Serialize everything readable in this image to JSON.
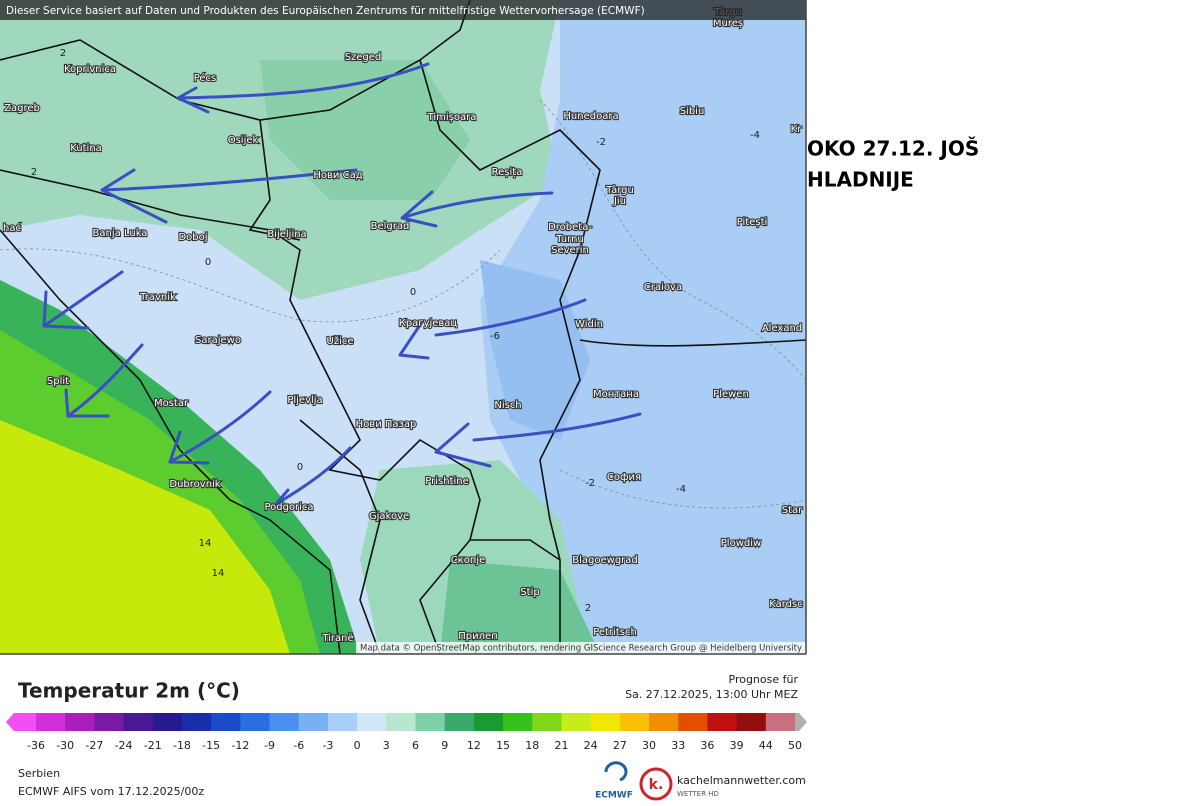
{
  "header_notice": "Dieser Service basiert auf Daten und Produkten des Europäischen Zentrums für mittelfristige Wettervorhersage (ECMWF)",
  "annotation": {
    "lines": [
      "OKO 27.12. JOŠ",
      "HLADNIJE"
    ]
  },
  "map": {
    "cities": [
      "Koprivnica",
      "Pécs",
      "Szeged",
      "Zagreb",
      "Timișoara",
      "Hunedoara",
      "Sibiu",
      "Târgu",
      "Mureș",
      "Kutina",
      "Osijek",
      "Нови Сад",
      "Reșița",
      "Târgu",
      "Jiu",
      "hać",
      "Banja Luka",
      "Doboj",
      "Bijeljina",
      "Belgrad",
      "Drobeta-",
      "Turnu",
      "Severin",
      "Pitești",
      "Craiova",
      "Travnik",
      "Sarajewo",
      "Užice",
      "Крагујевац",
      "Widin",
      "Alexand",
      "Kr",
      "Split",
      "Mostar",
      "Pljevlja",
      "Nisch",
      "Монтана",
      "Plewen",
      "Нови Пазар",
      "Dubrovnik",
      "Prishtine",
      "София",
      "Podgorica",
      "Gjakove",
      "Star",
      "Plowdiw",
      "Скопје",
      "Blagoewgrad",
      "Stip",
      "Kardsc",
      "Petritsch",
      "Tiranë",
      "Прилеп"
    ],
    "contour_labels": [
      2,
      2,
      -2,
      -4,
      0,
      0,
      -6,
      0,
      -2,
      -4,
      14,
      14,
      2
    ],
    "attribution": "Map data © OpenStreetMap contributors, rendering GIScience Research Group @ Heidelberg University"
  },
  "legend": {
    "title": "Temperatur 2m (°C)",
    "forecast_label": "Prognose für",
    "forecast_time": "Sa. 27.12.2025, 13:00 Uhr MEZ",
    "ticks": [
      -36,
      -30,
      -27,
      -24,
      -21,
      -18,
      -15,
      -12,
      -9,
      -6,
      -3,
      0,
      3,
      6,
      9,
      12,
      15,
      18,
      21,
      24,
      27,
      30,
      33,
      36,
      39,
      44,
      50
    ],
    "colors": [
      "#f050f0",
      "#d030d8",
      "#a820b8",
      "#7a1aa0",
      "#4a1890",
      "#261a8c",
      "#1a2ea8",
      "#1a4cc8",
      "#2a6ee0",
      "#4a90ec",
      "#78b0f2",
      "#a8cff6",
      "#d2e6fa",
      "#b8e6d0",
      "#7fd0a8",
      "#3ca86c",
      "#1a9a30",
      "#38c020",
      "#80d818",
      "#c8ec18",
      "#f0e800",
      "#f8c000",
      "#f09000",
      "#e05000",
      "#c01010",
      "#901010",
      "#c87080",
      "#e8a0b0",
      "#f0d0d8",
      "#b0b0b0"
    ]
  },
  "footer": {
    "region": "Serbien",
    "model_run": "ECMWF AIFS vom 17.12.2025/00z",
    "ecmwf_logo": "ECMWF",
    "site": "kachelmannwetter.com",
    "site_sub": "WETTER HD"
  }
}
